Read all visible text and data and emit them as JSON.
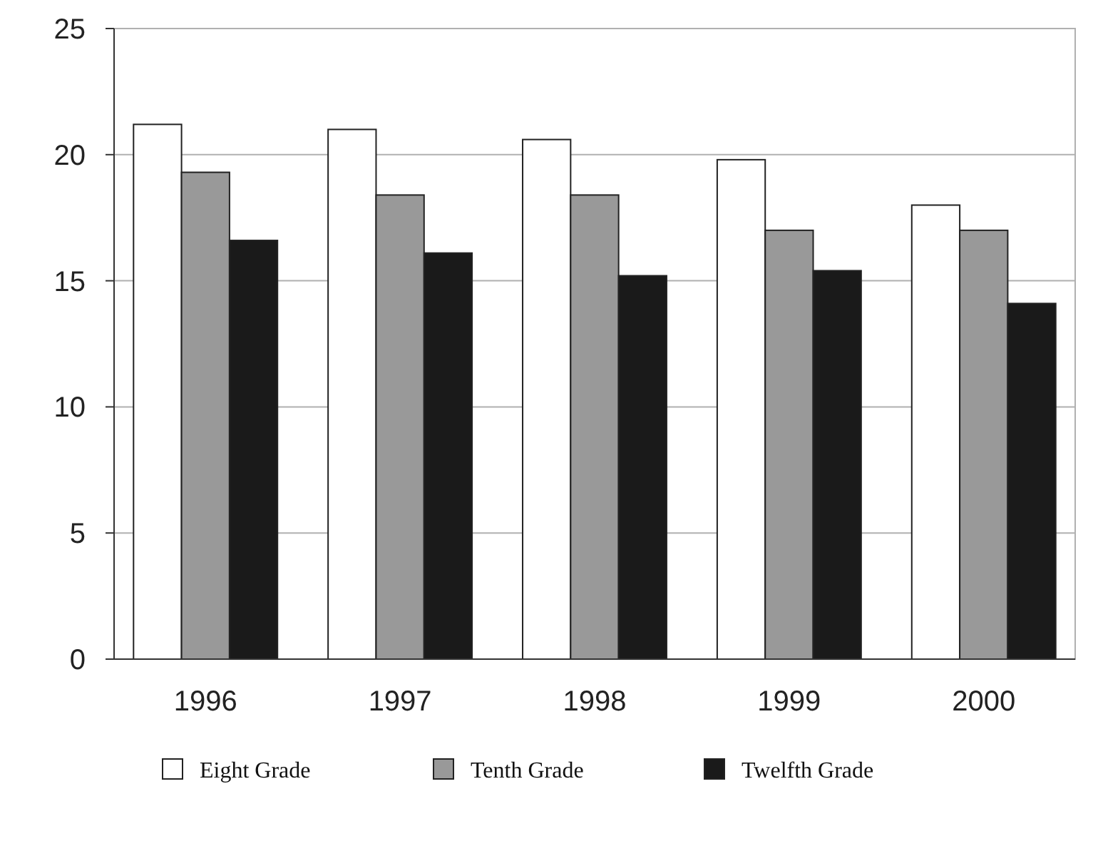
{
  "chart_data": {
    "type": "bar",
    "categories": [
      "1996",
      "1997",
      "1998",
      "1999",
      "2000"
    ],
    "series": [
      {
        "name": "Eight Grade",
        "color": "#ffffff",
        "values": [
          21.2,
          21.0,
          20.6,
          19.8,
          18.0
        ]
      },
      {
        "name": "Tenth Grade",
        "color": "#999999",
        "values": [
          19.3,
          18.4,
          18.4,
          17.0,
          17.0
        ]
      },
      {
        "name": "Twelfth Grade",
        "color": "#1a1a1a",
        "values": [
          16.6,
          16.1,
          15.2,
          15.4,
          14.1
        ]
      }
    ],
    "ylim": [
      0,
      25
    ],
    "yticks": [
      0,
      5,
      10,
      15,
      20,
      25
    ],
    "grid": "y",
    "legend": "bottom"
  }
}
